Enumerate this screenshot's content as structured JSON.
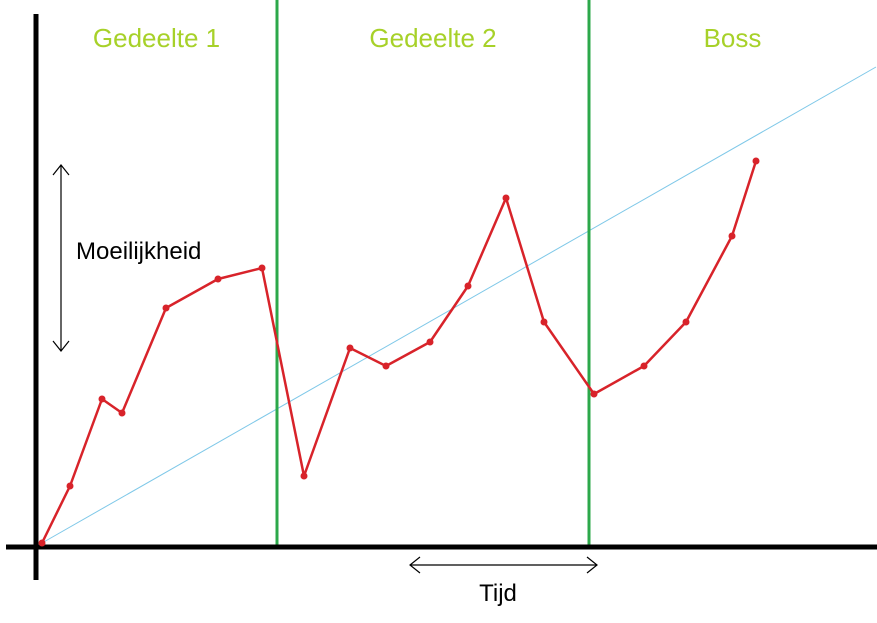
{
  "chart_data": {
    "type": "line",
    "title": "",
    "xlabel": "Tijd",
    "ylabel": "Moeilijkheid",
    "sections": [
      {
        "label": "Gedeelte 1",
        "start": 0,
        "end": 241
      },
      {
        "label": "Gedeelte 2",
        "start": 241,
        "end": 553
      },
      {
        "label": "Boss",
        "start": 553,
        "end": 840
      }
    ],
    "series": [
      {
        "color": "#d8232a",
        "points": [
          [
            6,
            4
          ],
          [
            34,
            61
          ],
          [
            66,
            148
          ],
          [
            86,
            134
          ],
          [
            130,
            239
          ],
          [
            182,
            268
          ],
          [
            226,
            279
          ],
          [
            268,
            71
          ],
          [
            314,
            199
          ],
          [
            350,
            181
          ],
          [
            394,
            205
          ],
          [
            432,
            261
          ],
          [
            470,
            349
          ],
          [
            508,
            225
          ],
          [
            558,
            153
          ],
          [
            608,
            181
          ],
          [
            650,
            225
          ],
          [
            696,
            311
          ],
          [
            720,
            386
          ]
        ]
      }
    ],
    "trend_line": {
      "color": "#7ec8e8",
      "from": [
        6,
        4
      ],
      "to": [
        840,
        480
      ]
    },
    "xlim": [
      0,
      840
    ],
    "ylim": [
      0,
      500
    ],
    "grid": false,
    "legend": "none",
    "colors": {
      "axis": "#000000",
      "divider": "#2ca84a",
      "section_label": "#a7d129"
    }
  }
}
